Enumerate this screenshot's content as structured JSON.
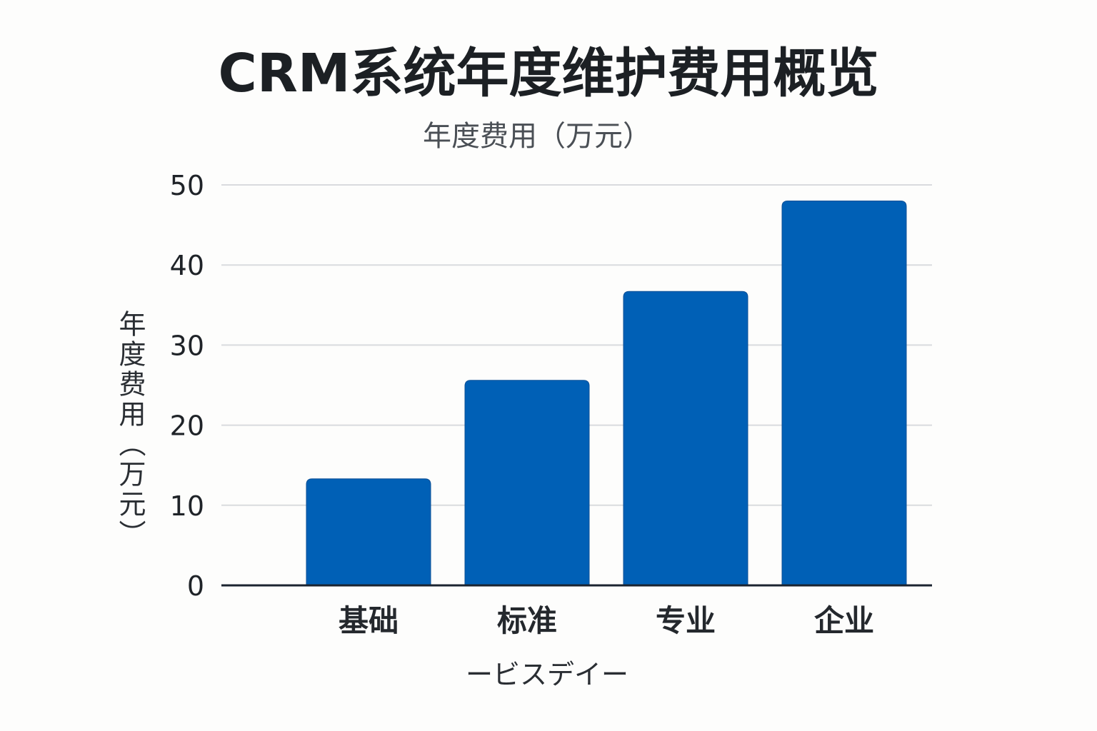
{
  "chart_data": {
    "type": "bar",
    "title": "CRM系统年度维护费用概览",
    "subtitle": "年度费用（万元）",
    "ylabel": "年度费用（万元）",
    "xlabel": "ービスデイー",
    "categories": [
      "基础",
      "标准",
      "专业",
      "企业"
    ],
    "values": [
      13.3,
      25.6,
      36.7,
      48.0
    ],
    "ylim": [
      0,
      50
    ],
    "yticks": [
      0,
      10,
      20,
      30,
      40,
      50
    ],
    "grid": true,
    "bar_color": "#0060b6"
  }
}
